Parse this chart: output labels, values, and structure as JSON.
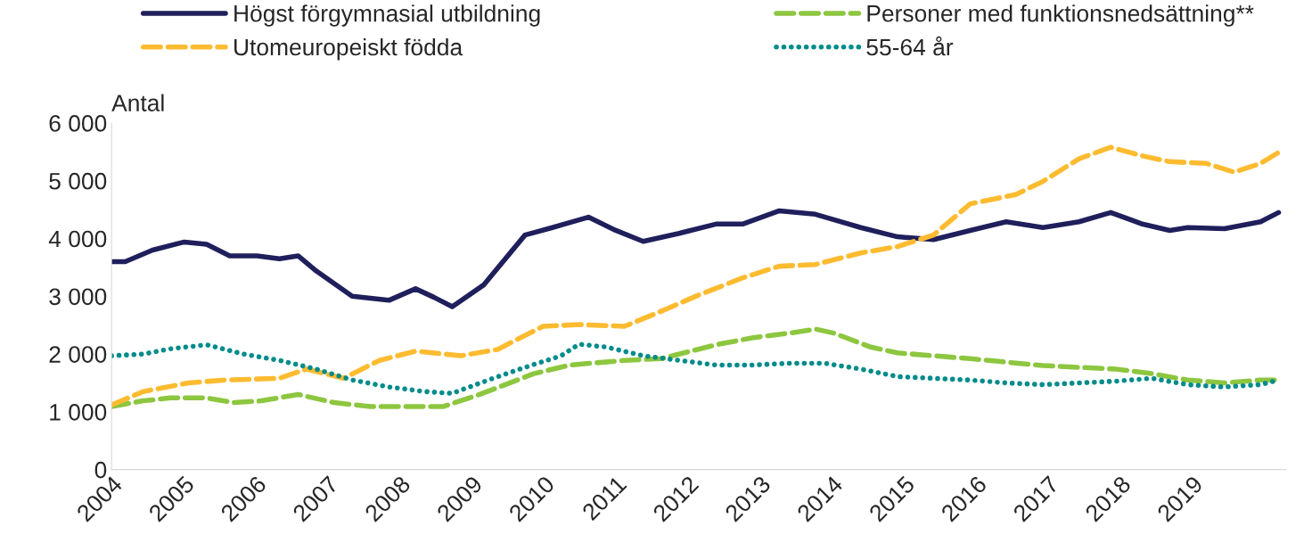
{
  "chart_data": {
    "type": "line",
    "ylabel": "Antal",
    "xlim": [
      2004,
      2020.3
    ],
    "xticks": [
      2004,
      2005,
      2006,
      2007,
      2008,
      2009,
      2010,
      2011,
      2012,
      2013,
      2014,
      2015,
      2016,
      2017,
      2018,
      2019
    ],
    "ylim": [
      0,
      6000
    ],
    "yticks": [
      {
        "value": 0,
        "label": "0"
      },
      {
        "value": 1000,
        "label": "1 000"
      },
      {
        "value": 2000,
        "label": "2 000"
      },
      {
        "value": 3000,
        "label": "3 000"
      },
      {
        "value": 4000,
        "label": "4 000"
      },
      {
        "value": 5000,
        "label": "5 000"
      },
      {
        "value": 6000,
        "label": "6 000"
      }
    ],
    "grid": false,
    "legend": "top",
    "marker": "none",
    "series": [
      {
        "name": "Högst förgymnasial utbildning",
        "color": "#1f1f5c",
        "line_style": "solid",
        "x": [
          2004,
          2004.19,
          2004.57,
          2005.01,
          2005.32,
          2005.64,
          2006.02,
          2006.33,
          2006.59,
          2006.84,
          2007.34,
          2007.85,
          2008.22,
          2008.48,
          2008.73,
          2009.17,
          2009.74,
          2010.12,
          2010.62,
          2011.0,
          2011.38,
          2011.88,
          2012.39,
          2012.76,
          2013.27,
          2013.77,
          2014.4,
          2014.91,
          2015.41,
          2015.92,
          2016.42,
          2016.93,
          2017.43,
          2017.87,
          2018.31,
          2018.69,
          2018.94,
          2019.45,
          2019.95,
          2020.2
        ],
        "values": [
          3600,
          3600,
          3800,
          3940,
          3900,
          3700,
          3700,
          3650,
          3700,
          3440,
          3000,
          2930,
          3130,
          2980,
          2820,
          3200,
          4060,
          4190,
          4370,
          4140,
          3950,
          4090,
          4250,
          4250,
          4480,
          4420,
          4190,
          4030,
          3980,
          4140,
          4290,
          4190,
          4290,
          4450,
          4250,
          4140,
          4190,
          4170,
          4290,
          4450
        ]
      },
      {
        "name": "Personer med funktionsnedsättning**",
        "color": "#8dc63f",
        "line_style": "dashed",
        "x": [
          2004,
          2004.44,
          2004.82,
          2005.32,
          2005.7,
          2006.08,
          2006.59,
          2007.09,
          2007.59,
          2008.22,
          2008.6,
          2009.11,
          2009.86,
          2010.37,
          2011.12,
          2011.63,
          2012.39,
          2012.89,
          2013.4,
          2013.78,
          2014.03,
          2014.54,
          2014.91,
          2015.41,
          2015.92,
          2016.42,
          2016.93,
          2017.43,
          2017.94,
          2018.44,
          2018.94,
          2019.45,
          2019.95,
          2020.2
        ],
        "values": [
          1090,
          1190,
          1240,
          1240,
          1160,
          1190,
          1300,
          1160,
          1090,
          1090,
          1090,
          1300,
          1660,
          1810,
          1890,
          1920,
          2160,
          2280,
          2360,
          2430,
          2360,
          2120,
          2020,
          1970,
          1920,
          1860,
          1800,
          1770,
          1740,
          1660,
          1550,
          1500,
          1550,
          1550
        ]
      },
      {
        "name": "Utomeuropeiskt födda",
        "color": "#fdbb30",
        "line_style": "dashed",
        "x": [
          2004,
          2004.44,
          2005.07,
          2005.58,
          2006.33,
          2006.71,
          2007.22,
          2007.72,
          2008.22,
          2008.85,
          2009.36,
          2009.99,
          2010.49,
          2011.12,
          2011.63,
          2012.13,
          2012.76,
          2013.27,
          2013.77,
          2014.4,
          2014.91,
          2015.41,
          2015.92,
          2016.55,
          2016.93,
          2017.43,
          2017.87,
          2018.31,
          2018.69,
          2019.2,
          2019.58,
          2019.95,
          2020.2
        ],
        "values": [
          1120,
          1350,
          1500,
          1550,
          1580,
          1740,
          1580,
          1890,
          2050,
          1970,
          2080,
          2480,
          2510,
          2480,
          2740,
          3010,
          3320,
          3520,
          3550,
          3750,
          3860,
          4060,
          4600,
          4760,
          4990,
          5380,
          5580,
          5430,
          5330,
          5300,
          5150,
          5300,
          5490
        ]
      },
      {
        "name": "55-64 år",
        "color": "#008b8b",
        "line_style": "dotted",
        "x": [
          2004,
          2004.44,
          2004.82,
          2005.32,
          2005.83,
          2006.33,
          2006.84,
          2007.34,
          2007.85,
          2008.35,
          2008.73,
          2009.23,
          2009.74,
          2010.24,
          2010.49,
          2010.87,
          2011.38,
          2011.88,
          2012.39,
          2012.89,
          2013.4,
          2013.9,
          2014.4,
          2014.91,
          2015.41,
          2015.92,
          2016.42,
          2016.93,
          2017.43,
          2017.94,
          2018.44,
          2018.94,
          2019.45,
          2019.95,
          2020.2
        ],
        "values": [
          1970,
          2000,
          2090,
          2160,
          2000,
          1890,
          1740,
          1550,
          1430,
          1350,
          1320,
          1550,
          1770,
          1970,
          2170,
          2120,
          1970,
          1890,
          1810,
          1810,
          1840,
          1840,
          1740,
          1610,
          1580,
          1550,
          1500,
          1470,
          1500,
          1530,
          1580,
          1470,
          1430,
          1470,
          1550
        ]
      }
    ]
  }
}
